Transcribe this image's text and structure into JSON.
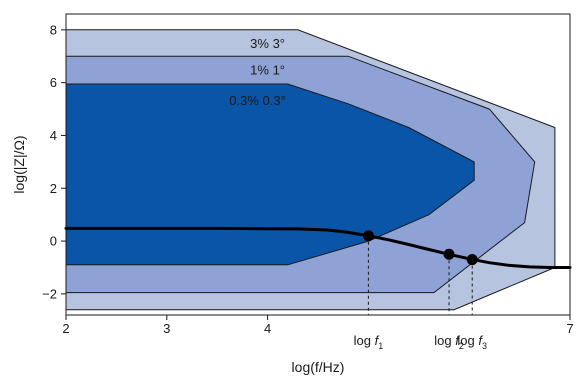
{
  "chart_data": {
    "type": "area",
    "xlabel": "log(f/Hz)",
    "ylabel": "log(|Z|/Ω)",
    "xlim": [
      2,
      7
    ],
    "ylim": [
      -2.8,
      8.6
    ],
    "x_ticks": [
      {
        "value": 2,
        "label": "2"
      },
      {
        "value": 3,
        "label": "3"
      },
      {
        "value": 4,
        "label": "4"
      },
      {
        "value": 7,
        "label": "7"
      }
    ],
    "y_ticks": [
      {
        "value": 8,
        "label": "8"
      },
      {
        "value": 6,
        "label": "6"
      },
      {
        "value": 4,
        "label": "4"
      },
      {
        "value": 2,
        "label": "2"
      },
      {
        "value": 0,
        "label": "0"
      },
      {
        "value": -2,
        "label": "−2"
      }
    ],
    "grid": false,
    "legend": "none",
    "colors": {
      "band_3": "#b6c4e0",
      "band_1": "#8ea2d6",
      "band_03": "#0a55a8",
      "outline": "#1a1a1a",
      "curve": "#000000"
    },
    "accuracy_regions": [
      {
        "label": "3% 3°",
        "fill": "#b6c4e0",
        "polygon": [
          [
            2,
            8
          ],
          [
            4.3,
            8
          ],
          [
            6.85,
            4.3
          ],
          [
            6.85,
            -1.0
          ],
          [
            5.85,
            -2.6
          ],
          [
            2,
            -2.6
          ]
        ]
      },
      {
        "label": "1% 1°",
        "fill": "#8ea2d6",
        "polygon": [
          [
            2,
            7
          ],
          [
            4.8,
            7
          ],
          [
            6.2,
            5.0
          ],
          [
            6.65,
            3.0
          ],
          [
            6.55,
            0.7
          ],
          [
            5.65,
            -1.95
          ],
          [
            2,
            -1.95
          ]
        ]
      },
      {
        "label": "0.3% 0.3°",
        "fill": "#0a55a8",
        "polygon": [
          [
            2,
            5.95
          ],
          [
            4.2,
            5.95
          ],
          [
            4.8,
            5.2
          ],
          [
            5.4,
            4.3
          ],
          [
            6.05,
            3.0
          ],
          [
            6.05,
            2.3
          ],
          [
            5.6,
            1.0
          ],
          [
            5.0,
            0.0
          ],
          [
            4.2,
            -0.9
          ],
          [
            2,
            -0.9
          ]
        ]
      }
    ],
    "impedance_curve": {
      "x": [
        2.0,
        2.5,
        3.0,
        3.5,
        4.0,
        4.3,
        4.6,
        4.8,
        5.0,
        5.2,
        5.4,
        5.6,
        5.8,
        6.0,
        6.2,
        6.4,
        6.6,
        6.8,
        7.0
      ],
      "y": [
        0.48,
        0.48,
        0.48,
        0.48,
        0.47,
        0.46,
        0.42,
        0.33,
        0.2,
        0.05,
        -0.13,
        -0.32,
        -0.5,
        -0.67,
        -0.82,
        -0.92,
        -0.98,
        -1.0,
        -1.0
      ]
    },
    "marked_points": [
      {
        "label": "log f",
        "subscript": "1",
        "x": 5.0,
        "y": 0.2
      },
      {
        "label": "log f",
        "subscript": "2",
        "x": 5.8,
        "y": -0.5
      },
      {
        "label": "log f",
        "subscript": "3",
        "x": 6.03,
        "y": -0.7
      }
    ]
  }
}
